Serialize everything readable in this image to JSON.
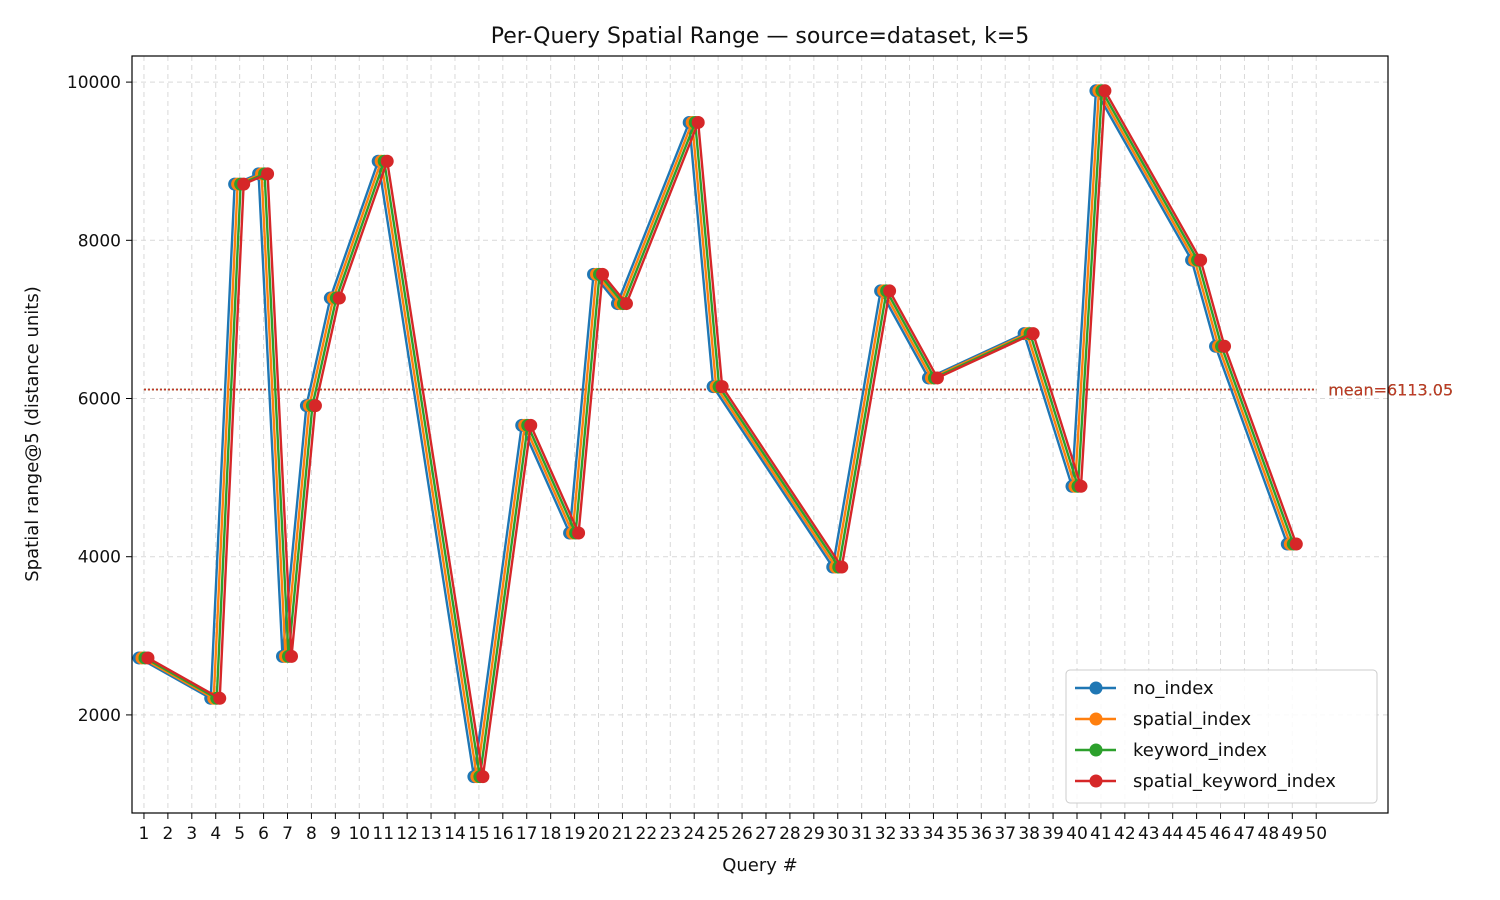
{
  "chart_data": {
    "type": "line",
    "title": "Per-Query Spatial Range — source=dataset, k=5",
    "xlabel": "Query #",
    "ylabel": "Spatial range@5 (distance units)",
    "xlim": [
      0.5,
      53
    ],
    "ylim": [
      760,
      10330
    ],
    "yticks": [
      2000,
      4000,
      6000,
      8000,
      10000
    ],
    "x": [
      1,
      4,
      5,
      6,
      7,
      8,
      9,
      11,
      15,
      17,
      19,
      20,
      21,
      24,
      25,
      30,
      32,
      34,
      38,
      40,
      41,
      45,
      46,
      49
    ],
    "xticks": [
      1,
      2,
      3,
      4,
      5,
      6,
      7,
      8,
      9,
      10,
      11,
      12,
      13,
      14,
      15,
      16,
      17,
      18,
      19,
      20,
      21,
      22,
      23,
      24,
      25,
      26,
      27,
      28,
      29,
      30,
      31,
      32,
      33,
      34,
      35,
      36,
      37,
      38,
      39,
      40,
      41,
      42,
      43,
      44,
      45,
      46,
      47,
      48,
      49,
      50
    ],
    "grid": true,
    "legend_position": "lower-right",
    "series": [
      {
        "name": "no_index",
        "color": "#1f77b4",
        "mean_label": "mean=6113.05",
        "mean": 6113.05,
        "values": [
          2720,
          2210,
          8710,
          8840,
          2740,
          5910,
          7270,
          9000,
          1220,
          5660,
          4300,
          7570,
          7200,
          9490,
          6150,
          3870,
          7360,
          6260,
          6820,
          4890,
          9890,
          7750,
          6660,
          4160
        ]
      },
      {
        "name": "spatial_index",
        "color": "#ff7f0e",
        "mean_label": "mean=6113.05",
        "mean": 6113.05,
        "values": [
          2720,
          2210,
          8710,
          8840,
          2740,
          5910,
          7270,
          9000,
          1220,
          5660,
          4300,
          7570,
          7200,
          9490,
          6150,
          3870,
          7360,
          6260,
          6820,
          4890,
          9890,
          7750,
          6660,
          4160
        ]
      },
      {
        "name": "keyword_index",
        "color": "#2ca02c",
        "mean_label": "mean=6113.05",
        "mean": 6113.05,
        "values": [
          2720,
          2210,
          8710,
          8840,
          2740,
          5910,
          7270,
          9000,
          1220,
          5660,
          4300,
          7570,
          7200,
          9490,
          6150,
          3870,
          7360,
          6260,
          6820,
          4890,
          9890,
          7750,
          6660,
          4160
        ]
      },
      {
        "name": "spatial_keyword_index",
        "color": "#d62728",
        "mean_label": "mean=6113.05",
        "mean": 6113.05,
        "values": [
          2720,
          2210,
          8710,
          8840,
          2740,
          5910,
          7270,
          9000,
          1220,
          5660,
          4300,
          7570,
          7200,
          9490,
          6150,
          3870,
          7360,
          6260,
          6820,
          4890,
          9890,
          7750,
          6660,
          4160
        ]
      }
    ]
  }
}
